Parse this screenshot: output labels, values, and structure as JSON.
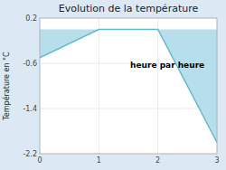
{
  "chart_data": {
    "type": "line",
    "title": "Evolution de la température",
    "xlabel": "heure par heure",
    "ylabel": "Température en °C",
    "x": [
      0,
      1,
      2,
      3
    ],
    "values": [
      -0.5,
      0.0,
      0.0,
      -2.0
    ],
    "color": "#62b8d0",
    "xlim": [
      0,
      3
    ],
    "ylim": [
      -2.2,
      0.2
    ],
    "xticks": [
      0,
      1,
      2,
      3
    ],
    "yticks": [
      0.2,
      -0.6,
      -1.4,
      -2.2
    ],
    "grid": true
  }
}
